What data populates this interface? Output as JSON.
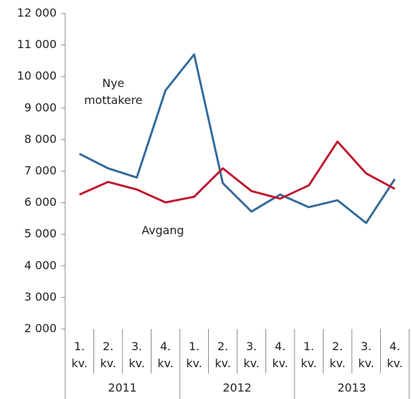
{
  "chart_data": {
    "type": "line",
    "categories": [
      "1. kv.",
      "2. kv.",
      "3. kv.",
      "4. kv.",
      "1. kv.",
      "2. kv.",
      "3. kv.",
      "4. kv.",
      "1. kv.",
      "2. kv.",
      "3. kv.",
      "4. kv."
    ],
    "x_groups": [
      "2011",
      "2012",
      "2013"
    ],
    "series": [
      {
        "name": "Nye mottakere",
        "color": "#336a9a",
        "values": [
          7550,
          7090,
          6800,
          9560,
          10700,
          6620,
          5720,
          6260,
          5860,
          6080,
          5360,
          6750
        ]
      },
      {
        "name": "Avgang",
        "color": "#c0182f",
        "values": [
          6260,
          6660,
          6420,
          6010,
          6190,
          7090,
          6370,
          6130,
          6550,
          7940,
          6930,
          6440
        ]
      }
    ],
    "ylim": [
      2000,
      12000
    ],
    "yticks": [
      {
        "value": 2000,
        "label": "2 000"
      },
      {
        "value": 3000,
        "label": "3 000"
      },
      {
        "value": 4000,
        "label": "4 000"
      },
      {
        "value": 5000,
        "label": "5 000"
      },
      {
        "value": 6000,
        "label": "6 000"
      },
      {
        "value": 7000,
        "label": "7 000"
      },
      {
        "value": 8000,
        "label": "8 000"
      },
      {
        "value": 9000,
        "label": "9 000"
      },
      {
        "value": 10000,
        "label": "10 000"
      },
      {
        "value": 11000,
        "label": "11 000"
      },
      {
        "value": 12000,
        "label": "12 000"
      }
    ],
    "grid": false
  }
}
